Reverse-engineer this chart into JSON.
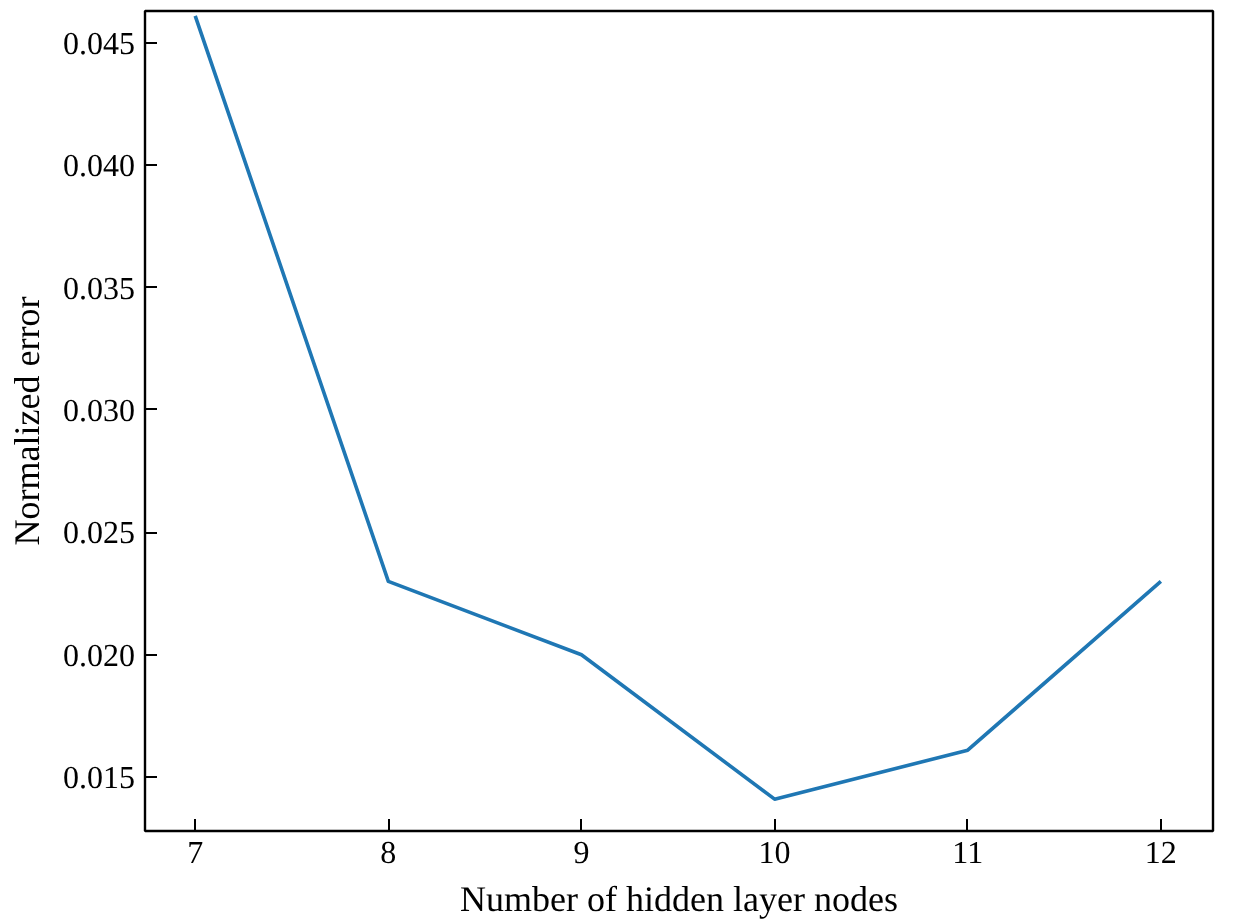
{
  "chart_data": {
    "type": "line",
    "xlabel": "Number of hidden layer nodes",
    "ylabel": "Normalized error",
    "x": [
      7,
      8,
      9,
      10,
      11,
      12
    ],
    "series": [
      {
        "color": "#1f77b4",
        "values": [
          0.0461,
          0.023,
          0.02,
          0.0141,
          0.0161,
          0.023
        ]
      }
    ],
    "xlim": [
      6.74,
      12.27
    ],
    "ylim": [
      0.0128,
      0.0463
    ],
    "xticks": [
      7,
      8,
      9,
      10,
      11,
      12
    ],
    "yticks": [
      {
        "value": 0.015,
        "label": "0.015"
      },
      {
        "value": 0.02,
        "label": "0.020"
      },
      {
        "value": 0.025,
        "label": "0.025"
      },
      {
        "value": 0.03,
        "label": "0.030"
      },
      {
        "value": 0.035,
        "label": "0.035"
      },
      {
        "value": 0.04,
        "label": "0.040"
      },
      {
        "value": 0.045,
        "label": "0.045"
      }
    ],
    "grid": false,
    "marker": "none",
    "line_style": "solid"
  }
}
